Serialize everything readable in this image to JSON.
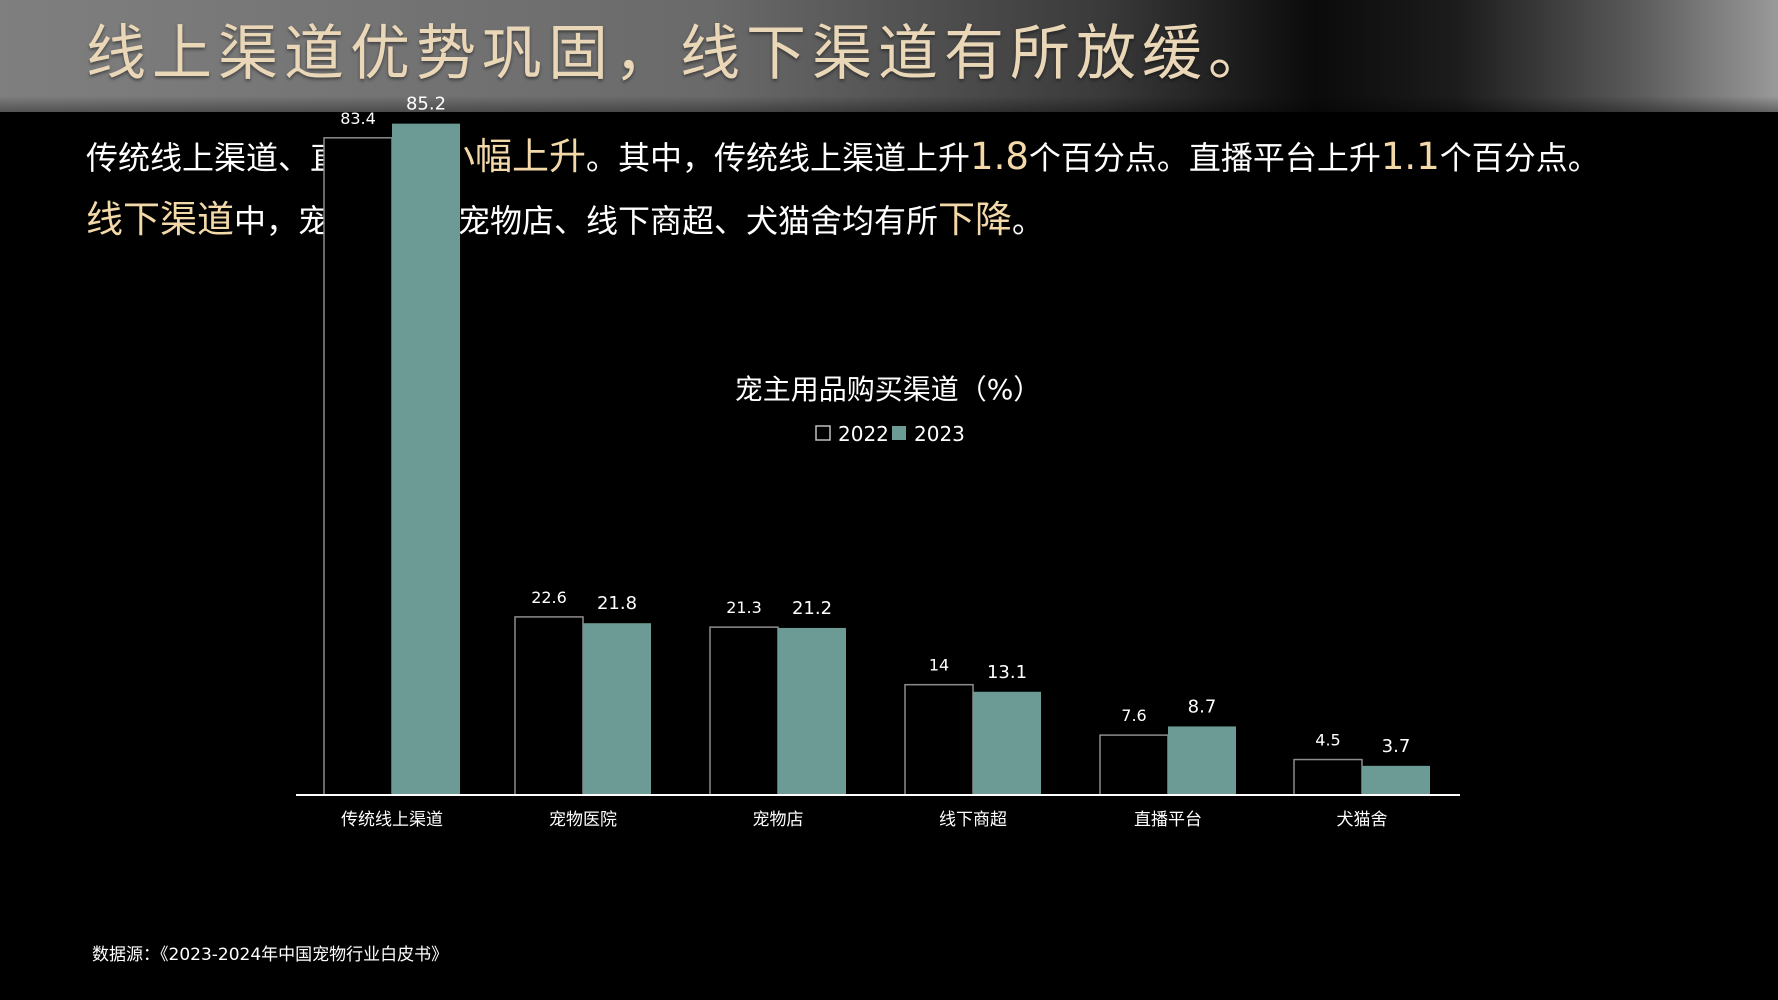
{
  "header": {
    "title": "线上渠道优势巩固，线下渠道有所放缓。"
  },
  "summary": {
    "s1": "传统线上渠道、直播平台",
    "h1": "小幅上升",
    "s2": "。其中，传统线上渠道上升",
    "h2": "1.8",
    "s3": "个百分点。直播平台上升",
    "h3": "1.1",
    "s4": "个百分点。",
    "h4": "线下渠道",
    "s5": "中，宠物医院、宠物店、线下商超、犬猫舍均有所",
    "h5": "下降",
    "s6": "。"
  },
  "chart_data": {
    "type": "bar",
    "title": "宠主用品购买渠道（%）",
    "categories": [
      "传统线上渠道",
      "宠物医院",
      "宠物店",
      "线下商超",
      "直播平台",
      "犬猫舍"
    ],
    "series": [
      {
        "name": "2022",
        "values": [
          83.4,
          22.6,
          21.3,
          14,
          7.6,
          4.5
        ],
        "labels": [
          "83.4",
          "22.6",
          "21.3",
          "14",
          "7.6",
          "4.5"
        ],
        "style": "outline",
        "color": "#ffffff"
      },
      {
        "name": "2023",
        "values": [
          85.2,
          21.8,
          21.2,
          13.1,
          8.7,
          3.7
        ],
        "labels": [
          "85.2",
          "21.8",
          "21.2",
          "13.1",
          "8.7",
          "3.7"
        ],
        "style": "filled",
        "color": "#6b9b94"
      }
    ],
    "ylim": [
      0,
      90
    ],
    "legend": "top-center",
    "grid": false,
    "xlabel": "",
    "ylabel": ""
  },
  "source": {
    "text": "数据源：《2023-2024年中国宠物行业白皮书》"
  },
  "colors": {
    "accent_text": "#f3d9a8",
    "title_text": "#ead7b8",
    "bar_2023": "#6b9b94"
  }
}
